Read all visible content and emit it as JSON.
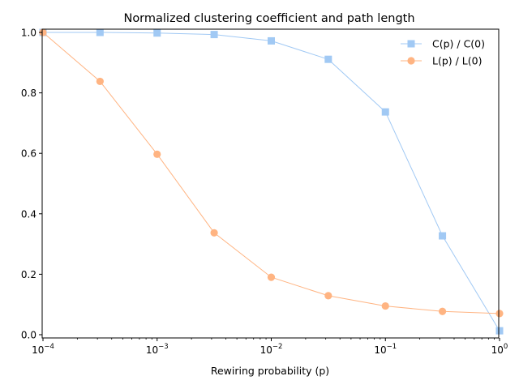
{
  "chart_data": {
    "type": "line",
    "title": "Normalized clustering coefficient and path length",
    "xlabel": "Rewiring probability (p)",
    "ylabel": "",
    "xscale": "log",
    "xlim": [
      0.0001,
      1
    ],
    "ylim": [
      0,
      1
    ],
    "x": [
      0.0001,
      0.000316,
      0.001,
      0.00316,
      0.01,
      0.0316,
      0.1,
      0.316,
      1
    ],
    "series": [
      {
        "name": "C(p) / C(0)",
        "marker": "square",
        "color": "#a1c9f4",
        "values": [
          1.0,
          1.0,
          0.998,
          0.993,
          0.972,
          0.911,
          0.737,
          0.327,
          0.013
        ]
      },
      {
        "name": "L(p) / L(0)",
        "marker": "circle",
        "color": "#ffb482",
        "values": [
          1.0,
          0.838,
          0.597,
          0.337,
          0.19,
          0.129,
          0.095,
          0.077,
          0.07
        ]
      }
    ],
    "xticks": [
      {
        "base": "10",
        "exp": "−4"
      },
      {
        "base": "10",
        "exp": "−3"
      },
      {
        "base": "10",
        "exp": "−2"
      },
      {
        "base": "10",
        "exp": "−1"
      },
      {
        "base": "10",
        "exp": "0"
      }
    ],
    "yticks": [
      "0.0",
      "0.2",
      "0.4",
      "0.6",
      "0.8",
      "1.0"
    ],
    "legend_position": "top-right",
    "grid": false
  }
}
